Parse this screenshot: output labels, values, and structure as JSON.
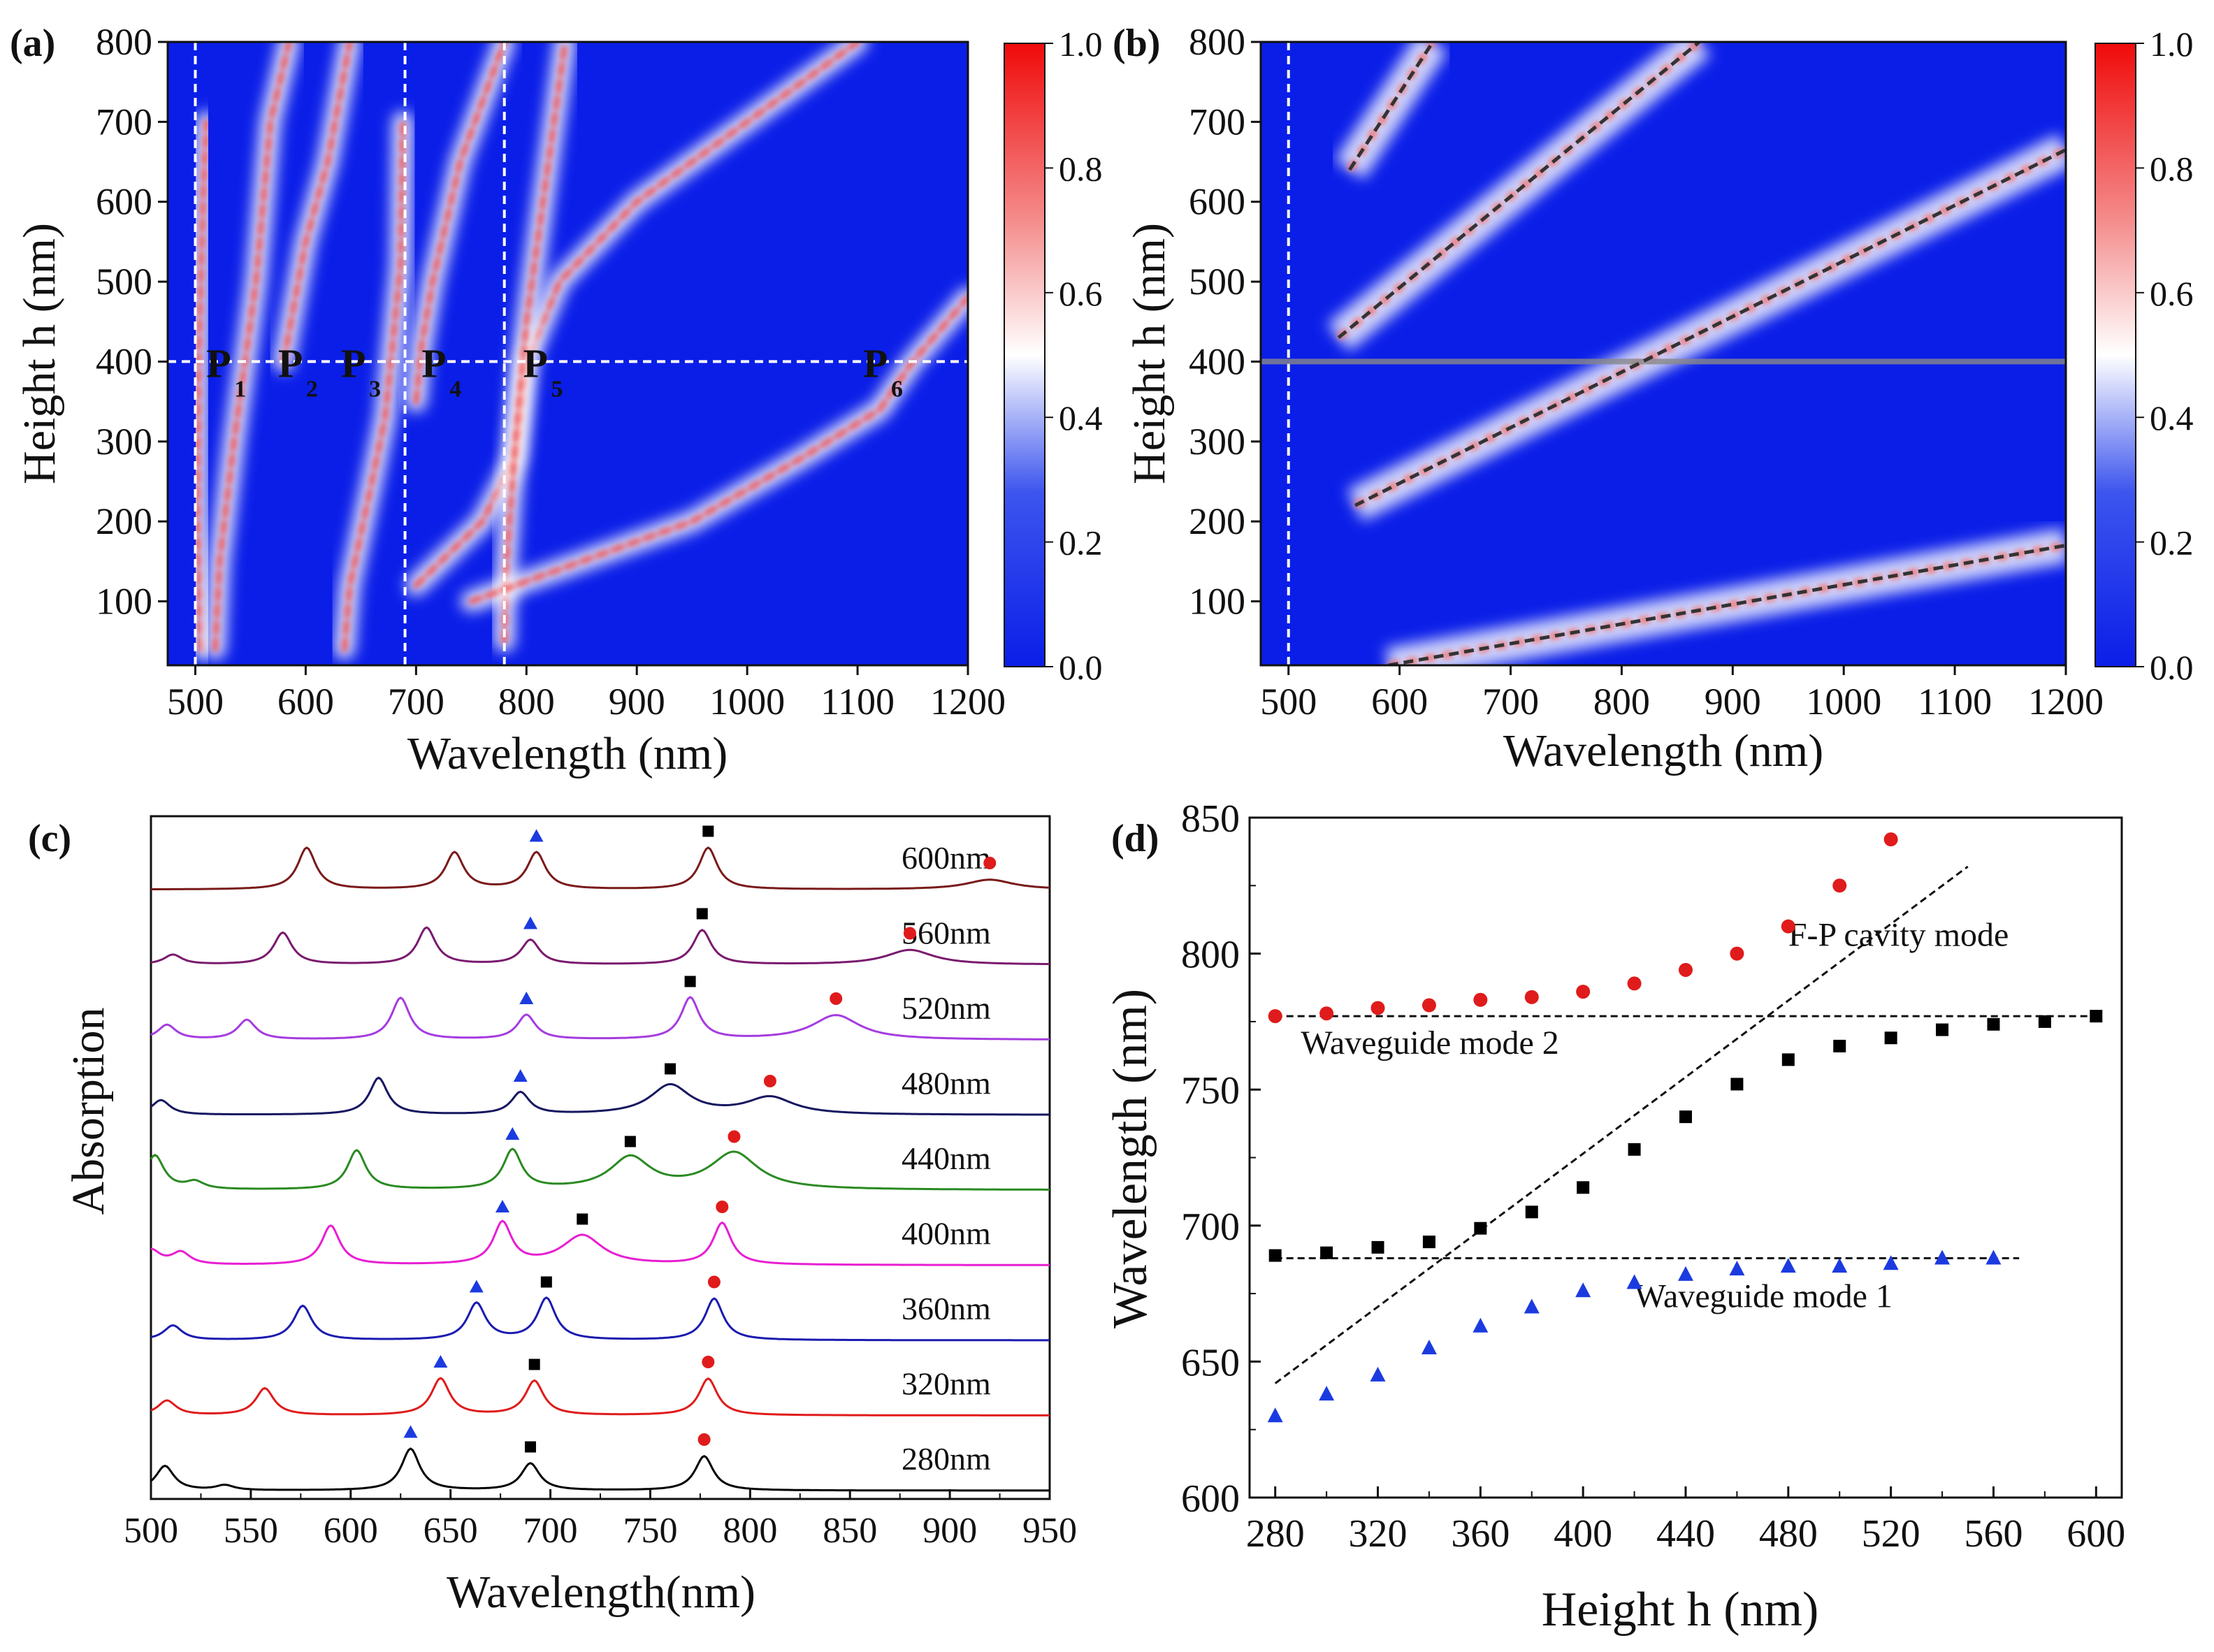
{
  "chart_data": [
    {
      "id": "a",
      "type": "heatmap",
      "panel_label": "(a)",
      "xlabel": "Wavelength (nm)",
      "ylabel": "Height h (nm)",
      "xlim": [
        475,
        1200
      ],
      "ylim": [
        20,
        800
      ],
      "xticks": [
        500,
        600,
        700,
        800,
        900,
        1000,
        1100,
        1200
      ],
      "yticks": [
        100,
        200,
        300,
        400,
        500,
        600,
        700,
        800
      ],
      "colorbar": {
        "min": 0.0,
        "max": 1.0,
        "ticks": [
          0.0,
          0.2,
          0.4,
          0.6,
          0.8,
          1.0
        ],
        "tick_labels": [
          "0.0",
          "0.2",
          "0.4",
          "0.6",
          "0.8",
          "1.0"
        ],
        "colors": [
          "#0a1ee8",
          "#ffffff",
          "#f00a0a"
        ]
      },
      "reference_lines": {
        "vertical_wavelengths": [
          500,
          690,
          780
        ],
        "horizontal_height": 400
      },
      "mode_branches": [
        {
          "points": [
            [
              505,
              40
            ],
            [
              502,
              200
            ],
            [
              503,
              400
            ],
            [
              507,
              600
            ],
            [
              510,
              700
            ]
          ]
        },
        {
          "points": [
            [
              518,
              40
            ],
            [
              522,
              150
            ],
            [
              535,
              300
            ],
            [
              555,
              500
            ],
            [
              568,
              700
            ],
            [
              585,
              800
            ]
          ]
        },
        {
          "points": [
            [
              635,
              40
            ],
            [
              640,
              120
            ],
            [
              660,
              250
            ],
            [
              672,
              330
            ],
            [
              686,
              520
            ],
            [
              688,
              700
            ]
          ]
        },
        {
          "points": [
            [
              580,
              400
            ],
            [
              600,
              550
            ],
            [
              620,
              650
            ],
            [
              640,
              800
            ]
          ]
        },
        {
          "points": [
            [
              700,
              120
            ],
            [
              760,
              200
            ],
            [
              790,
              280
            ],
            [
              800,
              400
            ],
            [
              830,
              500
            ],
            [
              900,
              600
            ],
            [
              1000,
              700
            ],
            [
              1100,
              800
            ]
          ]
        },
        {
          "points": [
            [
              780,
              50
            ],
            [
              782,
              150
            ],
            [
              790,
              300
            ],
            [
              800,
              450
            ],
            [
              815,
              600
            ],
            [
              835,
              800
            ]
          ]
        },
        {
          "points": [
            [
              700,
              350
            ],
            [
              705,
              420
            ],
            [
              715,
              500
            ],
            [
              740,
              650
            ],
            [
              780,
              800
            ]
          ]
        },
        {
          "points": [
            [
              750,
              100
            ],
            [
              850,
              150
            ],
            [
              950,
              200
            ],
            [
              1050,
              280
            ],
            [
              1120,
              340
            ],
            [
              1150,
              400
            ],
            [
              1200,
              480
            ]
          ]
        }
      ],
      "annotations": [
        {
          "label": "P",
          "sub": "1",
          "x": 510,
          "y": 400
        },
        {
          "label": "P",
          "sub": "2",
          "x": 575,
          "y": 400
        },
        {
          "label": "P",
          "sub": "3",
          "x": 632,
          "y": 400
        },
        {
          "label": "P",
          "sub": "4",
          "x": 705,
          "y": 400
        },
        {
          "label": "P",
          "sub": "5",
          "x": 797,
          "y": 400
        },
        {
          "label": "P",
          "sub": "6",
          "x": 1105,
          "y": 400
        }
      ]
    },
    {
      "id": "b",
      "type": "heatmap",
      "panel_label": "(b)",
      "xlabel": "Wavelength (nm)",
      "ylabel": "Height h (nm)",
      "xlim": [
        475,
        1200
      ],
      "ylim": [
        20,
        800
      ],
      "xticks": [
        500,
        600,
        700,
        800,
        900,
        1000,
        1100,
        1200
      ],
      "yticks": [
        100,
        200,
        300,
        400,
        500,
        600,
        700,
        800
      ],
      "colorbar": {
        "min": 0.0,
        "max": 1.0,
        "ticks": [
          0.0,
          0.2,
          0.4,
          0.6,
          0.8,
          1.0
        ],
        "tick_labels": [
          "0.0",
          "0.2",
          "0.4",
          "0.6",
          "0.8",
          "1.0"
        ],
        "colors": [
          "#0a1ee8",
          "#ffffff",
          "#f00a0a"
        ]
      },
      "reference_lines": {
        "vertical_wavelengths": [
          500
        ],
        "horizontal_height": 400
      },
      "fit_lines": [
        {
          "start": [
            590,
            20
          ],
          "end": [
            1200,
            170
          ]
        },
        {
          "start": [
            560,
            220
          ],
          "end": [
            1200,
            665
          ]
        },
        {
          "start": [
            545,
            430
          ],
          "end": [
            870,
            800
          ]
        },
        {
          "start": [
            555,
            640
          ],
          "end": [
            630,
            800
          ]
        }
      ]
    },
    {
      "id": "c",
      "type": "line",
      "panel_label": "(c)",
      "xlabel": "Wavelength(nm)",
      "ylabel": "Absorption",
      "xlim": [
        500,
        950
      ],
      "xticks": [
        500,
        550,
        600,
        650,
        700,
        750,
        800,
        850,
        900,
        950
      ],
      "series": [
        {
          "name": "280nm",
          "color": "#000000",
          "peaks": [
            [
              507,
              0.5
            ],
            [
              537,
              0.1
            ],
            [
              630,
              0.85
            ],
            [
              690,
              0.55
            ],
            [
              777,
              0.7
            ]
          ],
          "marker_triangle": 630,
          "marker_square": 690,
          "marker_circle": 777
        },
        {
          "name": "320nm",
          "color": "#e01b1b",
          "peaks": [
            [
              508,
              0.3
            ],
            [
              557,
              0.55
            ],
            [
              645,
              0.75
            ],
            [
              692,
              0.7
            ],
            [
              779,
              0.75
            ]
          ],
          "marker_triangle": 645,
          "marker_square": 692,
          "marker_circle": 779
        },
        {
          "name": "360nm",
          "color": "#1b1bb0",
          "peaks": [
            [
              511,
              0.3
            ],
            [
              576,
              0.7
            ],
            [
              663,
              0.75
            ],
            [
              698,
              0.85
            ],
            [
              782,
              0.85
            ]
          ],
          "marker_triangle": 663,
          "marker_square": 698,
          "marker_circle": 782
        },
        {
          "name": "400nm",
          "color": "#e81ed2",
          "peaks": [
            [
              500,
              0.3
            ],
            [
              515,
              0.25
            ],
            [
              590,
              0.8
            ],
            [
              676,
              0.85
            ],
            [
              716,
              0.6
            ],
            [
              786,
              0.85
            ]
          ],
          "marker_triangle": 676,
          "marker_square": 716,
          "marker_circle": 786
        },
        {
          "name": "440nm",
          "color": "#2a8a22",
          "peaks": [
            [
              502,
              0.7
            ],
            [
              522,
              0.15
            ],
            [
              603,
              0.8
            ],
            [
              681,
              0.8
            ],
            [
              740,
              0.65
            ],
            [
              792,
              0.75
            ]
          ],
          "marker_triangle": 681,
          "marker_square": 740,
          "marker_circle": 792
        },
        {
          "name": "480nm",
          "color": "#161660",
          "peaks": [
            [
              505,
              0.3
            ],
            [
              614,
              0.75
            ],
            [
              685,
              0.45
            ],
            [
              760,
              0.6
            ],
            [
              810,
              0.35
            ]
          ],
          "marker_triangle": 685,
          "marker_square": 760,
          "marker_circle": 810
        },
        {
          "name": "520nm",
          "color": "#a53ce0",
          "peaks": [
            [
              508,
              0.3
            ],
            [
              548,
              0.4
            ],
            [
              625,
              0.85
            ],
            [
              688,
              0.5
            ],
            [
              770,
              0.85
            ],
            [
              843,
              0.5
            ]
          ],
          "marker_triangle": 688,
          "marker_square": 770,
          "marker_circle": 843
        },
        {
          "name": "560nm",
          "color": "#7a1a6e",
          "peaks": [
            [
              511,
              0.2
            ],
            [
              566,
              0.65
            ],
            [
              638,
              0.75
            ],
            [
              690,
              0.5
            ],
            [
              776,
              0.7
            ],
            [
              880,
              0.3
            ]
          ],
          "marker_triangle": 690,
          "marker_square": 776,
          "marker_circle": 880
        },
        {
          "name": "600nm",
          "color": "#7a1a1a",
          "peaks": [
            [
              578,
              0.85
            ],
            [
              652,
              0.75
            ],
            [
              693,
              0.75
            ],
            [
              779,
              0.85
            ],
            [
              920,
              0.2
            ]
          ],
          "marker_triangle": 693,
          "marker_square": 779,
          "marker_circle": 920
        }
      ]
    },
    {
      "id": "d",
      "type": "scatter",
      "panel_label": "(d)",
      "xlabel": "Height h (nm)",
      "ylabel": "Wavelength (nm)",
      "xlim": [
        270,
        610
      ],
      "ylim": [
        600,
        850
      ],
      "xticks": [
        280,
        320,
        360,
        400,
        440,
        480,
        520,
        560,
        600
      ],
      "yticks": [
        600,
        650,
        700,
        750,
        800,
        850
      ],
      "series": [
        {
          "name": "circles",
          "marker": "circle",
          "color": "#e01b1b",
          "x": [
            280,
            300,
            320,
            340,
            360,
            380,
            400,
            420,
            440,
            460,
            480,
            500,
            520
          ],
          "y": [
            777,
            778,
            780,
            781,
            783,
            784,
            786,
            789,
            794,
            800,
            810,
            825,
            842
          ]
        },
        {
          "name": "squares",
          "marker": "square",
          "color": "#000000",
          "x": [
            280,
            300,
            320,
            340,
            360,
            380,
            400,
            420,
            440,
            460,
            480,
            500,
            520,
            540,
            560,
            580,
            600
          ],
          "y": [
            689,
            690,
            692,
            694,
            699,
            705,
            714,
            728,
            740,
            752,
            761,
            766,
            769,
            772,
            774,
            775,
            777
          ]
        },
        {
          "name": "triangles",
          "marker": "triangle",
          "color": "#1b3be0",
          "x": [
            280,
            300,
            320,
            340,
            360,
            380,
            400,
            420,
            440,
            460,
            480,
            500,
            520,
            540,
            560
          ],
          "y": [
            630,
            638,
            645,
            655,
            663,
            670,
            676,
            679,
            682,
            684,
            685,
            685,
            686,
            688,
            688
          ]
        }
      ],
      "reference_lines": [
        {
          "label": "Waveguide mode 2",
          "start": [
            280,
            777
          ],
          "end": [
            600,
            777
          ]
        },
        {
          "label": "Waveguide mode 1",
          "start": [
            280,
            688
          ],
          "end": [
            570,
            688
          ]
        },
        {
          "label": "F-P cavity mode",
          "start": [
            280,
            642
          ],
          "end": [
            550,
            832
          ]
        }
      ]
    }
  ]
}
